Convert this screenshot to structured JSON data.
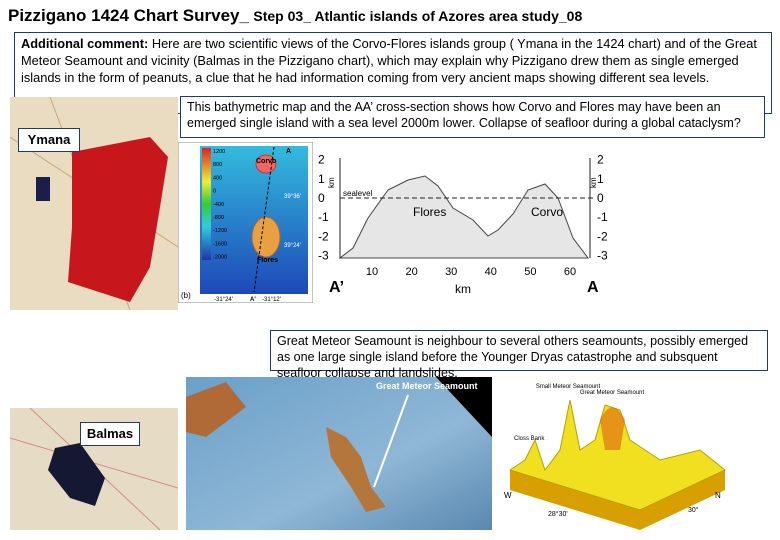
{
  "header": {
    "title": "Pizzigano 1424 Chart Survey_",
    "subtitle": "Step 03_ Atlantic islands of Azores area study_08"
  },
  "comment": {
    "label": "Additional comment:",
    "text": "Here are two scientific views of the Corvo-Flores islands group ( Ymana in the 1424 chart) and of the Great Meteor Seamount  and vicinity (Balmas in the Pizzigano chart), which may explain why Pizzigano drew them as single emerged islands in the form of peanuts, a clue that he had information coming from very ancient maps showing different sea levels."
  },
  "panels": {
    "ymana": "Ymana",
    "balmas": "Balmas"
  },
  "captions": [
    "This bathymetric map and the AA’ cross-section shows how Corvo and Flores may have been an emerged single island with a sea level 2000m lower. Collapse of seafloor during a global cataclysm?",
    "Great Meteor Seamount is neighbour to several others seamounts, possibly emerged as one large single island before the Younger Dryas catastrophe and subsquent seafloor collapse and landslides."
  ],
  "bathymetry": {
    "scale": [
      1200,
      800,
      400,
      0,
      -400,
      -800,
      -1200,
      -1600,
      -2000
    ],
    "corvo": "Corvo",
    "flores": "Flores",
    "panel": "(b)",
    "lat_top": "39°36'",
    "lat_mid": "39°24'",
    "lon_left": "-31°24'",
    "lon_right": "-31°12'",
    "end_left": "A'",
    "end_right": "A"
  },
  "profile": {
    "yticks": [
      2,
      1,
      0,
      -1,
      -2,
      -3
    ],
    "xticks": [
      10,
      20,
      30,
      40,
      50,
      60
    ],
    "x_label": "km",
    "y_label": "km",
    "sealevel": "sealevel",
    "flores": "Flores",
    "corvo": "Corvo",
    "end_left": "A’",
    "end_right": "A"
  },
  "seamounts": {
    "pointer": "Great Meteor Seamount",
    "small": "Small Meteor Seamount",
    "great": "Great Meteor Seamount",
    "closs": "Closs Bank",
    "west": "W",
    "north": "N",
    "lon": "28°30'",
    "lat": "30°"
  }
}
